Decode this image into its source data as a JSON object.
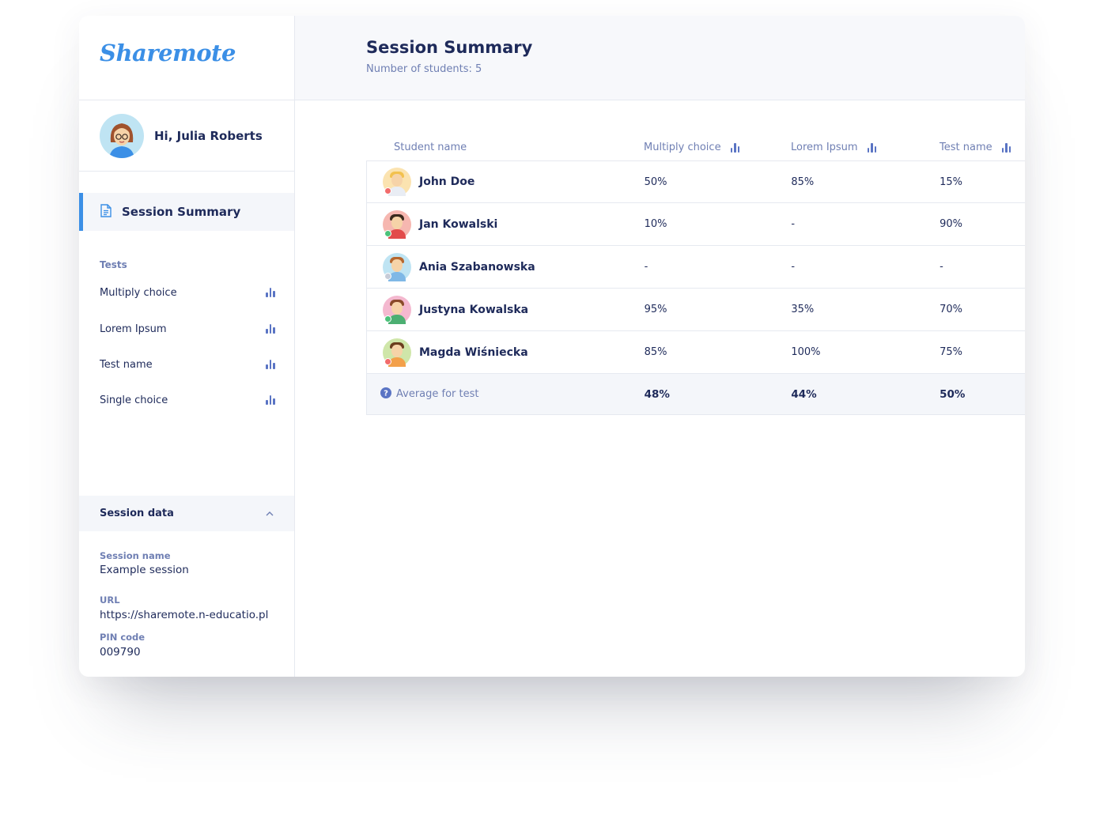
{
  "app": {
    "logo": "Sharemote"
  },
  "user": {
    "greeting": "Hi, Julia Roberts"
  },
  "nav": {
    "active_label": "Session Summary"
  },
  "tests": {
    "title": "Tests",
    "items": [
      {
        "label": "Multiply choice"
      },
      {
        "label": "Lorem Ipsum"
      },
      {
        "label": "Test name"
      },
      {
        "label": "Single choice"
      }
    ]
  },
  "session_data": {
    "title": "Session data",
    "name_label": "Session name",
    "name_value": "Example session",
    "url_label": "URL",
    "url_value": "https://sharemote.n-educatio.pl",
    "pin_label": "PIN code",
    "pin_value": "009790"
  },
  "header": {
    "title": "Session Summary",
    "subtitle": "Number of students: 5"
  },
  "table": {
    "columns": {
      "name": "Student name",
      "a": "Multiply choice",
      "b": "Lorem Ipsum",
      "c": "Test name"
    },
    "rows": [
      {
        "name": "John Doe",
        "a": "50%",
        "b": "85%",
        "c": "15%",
        "avatar_bg": "#fbe3b0",
        "hair": "#f2c14e",
        "shirt": "#e9edf4",
        "status": "#f26b6b"
      },
      {
        "name": "Jan Kowalski",
        "a": "10%",
        "b": "-",
        "c": "90%",
        "avatar_bg": "#f6b7b0",
        "hair": "#3b2a1e",
        "shirt": "#e24b4b",
        "status": "#4cc27a"
      },
      {
        "name": "Ania Szabanowska",
        "a": "-",
        "b": "-",
        "c": "-",
        "avatar_bg": "#bfe4f3",
        "hair": "#b5662e",
        "shirt": "#7fb8e6",
        "status": "#c7ccd8"
      },
      {
        "name": "Justyna Kowalska",
        "a": "95%",
        "b": "35%",
        "c": "70%",
        "avatar_bg": "#f4b8cf",
        "hair": "#8a4a2a",
        "shirt": "#4caf72",
        "status": "#4cc27a"
      },
      {
        "name": "Magda Wiśniecka",
        "a": "85%",
        "b": "100%",
        "c": "75%",
        "avatar_bg": "#cfe6a9",
        "hair": "#6b3e1e",
        "shirt": "#f3a04a",
        "status": "#f26b6b"
      }
    ],
    "average": {
      "label": "Average for test",
      "a": "48%",
      "b": "44%",
      "c": "50%"
    }
  },
  "colors": {
    "accent": "#3b8fe6",
    "text": "#1e2a5a",
    "muted": "#6f7fb3"
  }
}
